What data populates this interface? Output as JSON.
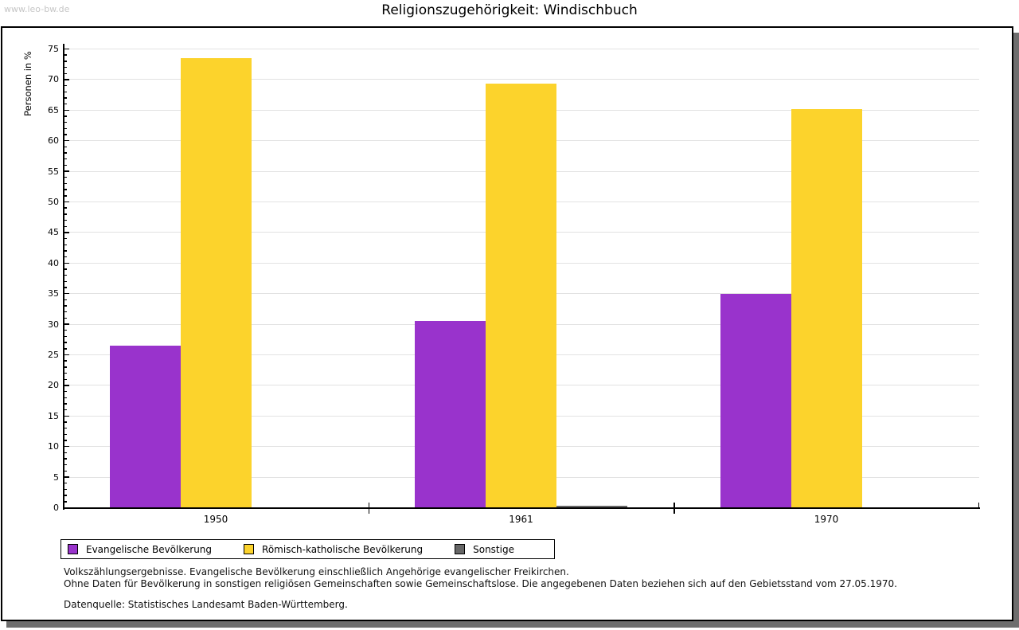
{
  "header": {
    "watermark": "www.leo-bw.de",
    "title": "Religionszugehörigkeit: Windischbuch"
  },
  "chart_data": {
    "type": "bar",
    "title": "Religionszugehörigkeit: Windischbuch",
    "xlabel": "",
    "ylabel": "Personen in %",
    "ylim": [
      0,
      75
    ],
    "y_ticks": [
      0,
      5,
      10,
      15,
      20,
      25,
      30,
      35,
      40,
      45,
      50,
      55,
      60,
      65,
      70,
      75
    ],
    "y_minor_step": 1,
    "grid": true,
    "legend_position": "bottom",
    "categories": [
      "1950",
      "1961",
      "1970"
    ],
    "series": [
      {
        "name": "Evangelische Bevölkerung",
        "color": "#9933CC",
        "values": [
          26.5,
          30.5,
          34.9
        ]
      },
      {
        "name": "Römisch-katholische Bevölkerung",
        "color": "#FCD32C",
        "values": [
          73.5,
          69.3,
          65.2
        ]
      },
      {
        "name": "Sonstige",
        "color": "#666666",
        "values": [
          0,
          0.3,
          0
        ]
      }
    ]
  },
  "footnotes": {
    "line1": "Volkszählungsergebnisse. Evangelische Bevölkerung einschließlich Angehörige evangelischer Freikirchen.",
    "line2": "Ohne Daten für Bevölkerung in sonstigen religiösen Gemeinschaften sowie Gemeinschaftslose. Die angegebenen Daten beziehen sich auf den Gebietsstand vom 27.05.1970.",
    "source": "Datenquelle: Statistisches Landesamt Baden-Württemberg."
  },
  "colors": {
    "axis": "#000000",
    "grid": "#e2e2e2",
    "watermark": "#c6c6c6",
    "frame_shadow": "#6e6e6e"
  }
}
